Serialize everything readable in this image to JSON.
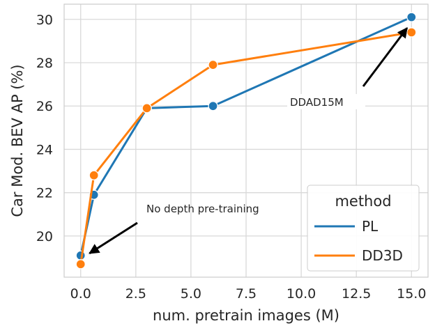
{
  "chart_data": {
    "type": "line",
    "xlabel": "num. pretrain images (M)",
    "ylabel": "Car Mod. BEV AP (%)",
    "xlim": [
      -0.75,
      15.75
    ],
    "ylim": [
      18.1,
      30.7
    ],
    "xticks": [
      0.0,
      2.5,
      5.0,
      7.5,
      10.0,
      12.5,
      15.0
    ],
    "xtick_labels": [
      "0.0",
      "2.5",
      "5.0",
      "7.5",
      "10.0",
      "12.5",
      "15.0"
    ],
    "yticks": [
      20,
      22,
      24,
      26,
      28,
      30
    ],
    "ytick_labels": [
      "20",
      "22",
      "24",
      "26",
      "28",
      "30"
    ],
    "grid": true,
    "legend": {
      "title": "method",
      "position": "lower-right"
    },
    "series": [
      {
        "name": "PL",
        "color": "#1f77b4",
        "x": [
          0,
          0.6,
          3,
          6,
          15
        ],
        "y": [
          19.1,
          21.9,
          25.9,
          26.0,
          30.1
        ]
      },
      {
        "name": "DD3D",
        "color": "#ff7f0e",
        "x": [
          0,
          0.6,
          3,
          6,
          15
        ],
        "y": [
          18.7,
          22.8,
          25.9,
          27.9,
          29.4
        ]
      }
    ],
    "annotations": [
      {
        "text": "No depth pre-training",
        "point": [
          0.4,
          19.2
        ]
      },
      {
        "text": "DDAD15M",
        "point": [
          14.8,
          29.6
        ]
      }
    ]
  }
}
